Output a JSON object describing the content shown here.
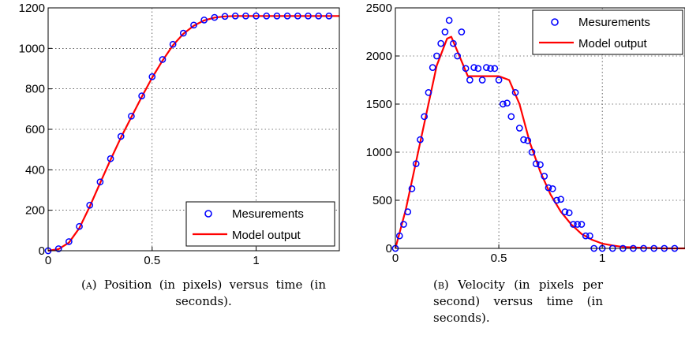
{
  "chart_data": [
    {
      "type": "scatter",
      "title": "",
      "xlabel": "",
      "ylabel": "",
      "xlim": [
        0,
        1.4
      ],
      "ylim": [
        0,
        1200
      ],
      "xticks": [
        "0",
        "0.5",
        "1"
      ],
      "yticks": [
        "0",
        "200",
        "400",
        "600",
        "800",
        "1000",
        "1200"
      ],
      "grid": true,
      "legend_position": "bottom-right",
      "series": [
        {
          "name": "Mesurements",
          "marker": "circle",
          "color": "#0000ff",
          "x": [
            0.0,
            0.05,
            0.1,
            0.15,
            0.2,
            0.25,
            0.3,
            0.35,
            0.4,
            0.45,
            0.5,
            0.55,
            0.6,
            0.65,
            0.7,
            0.75,
            0.8,
            0.85,
            0.9,
            0.95,
            1.0,
            1.05,
            1.1,
            1.15,
            1.2,
            1.25,
            1.3,
            1.35
          ],
          "y": [
            0,
            10,
            45,
            120,
            225,
            340,
            455,
            565,
            665,
            765,
            860,
            945,
            1020,
            1075,
            1115,
            1140,
            1153,
            1158,
            1160,
            1160,
            1160,
            1160,
            1160,
            1160,
            1160,
            1160,
            1160,
            1160
          ]
        },
        {
          "name": "Model output",
          "line": true,
          "color": "#ff0000",
          "x": [
            0.0,
            0.05,
            0.1,
            0.15,
            0.2,
            0.25,
            0.3,
            0.35,
            0.4,
            0.45,
            0.5,
            0.55,
            0.6,
            0.65,
            0.7,
            0.75,
            0.8,
            0.85,
            0.9,
            0.95,
            1.0,
            1.1,
            1.2,
            1.3,
            1.4
          ],
          "y": [
            0,
            8,
            40,
            112,
            218,
            335,
            450,
            560,
            660,
            760,
            855,
            940,
            1015,
            1072,
            1112,
            1138,
            1152,
            1158,
            1160,
            1160,
            1160,
            1160,
            1160,
            1160,
            1160
          ]
        }
      ]
    },
    {
      "type": "scatter",
      "title": "",
      "xlabel": "",
      "ylabel": "",
      "xlim": [
        0,
        1.4
      ],
      "ylim": [
        0,
        2500
      ],
      "xticks": [
        "0",
        "0.5",
        "1"
      ],
      "yticks": [
        "0",
        "500",
        "1000",
        "1500",
        "2000",
        "2500"
      ],
      "grid": true,
      "legend_position": "top-right",
      "series": [
        {
          "name": "Mesurements",
          "marker": "circle",
          "color": "#0000ff",
          "x": [
            0.0,
            0.02,
            0.04,
            0.06,
            0.08,
            0.1,
            0.12,
            0.14,
            0.16,
            0.18,
            0.2,
            0.22,
            0.24,
            0.26,
            0.28,
            0.3,
            0.32,
            0.34,
            0.36,
            0.38,
            0.4,
            0.42,
            0.44,
            0.46,
            0.48,
            0.5,
            0.52,
            0.54,
            0.56,
            0.58,
            0.6,
            0.62,
            0.64,
            0.66,
            0.68,
            0.7,
            0.72,
            0.74,
            0.76,
            0.78,
            0.8,
            0.82,
            0.84,
            0.86,
            0.88,
            0.9,
            0.92,
            0.94,
            0.96,
            1.0,
            1.05,
            1.1,
            1.15,
            1.2,
            1.25,
            1.3,
            1.35
          ],
          "y": [
            0,
            130,
            250,
            380,
            620,
            880,
            1130,
            1370,
            1620,
            1880,
            2000,
            2130,
            2250,
            2370,
            2130,
            2000,
            2250,
            1870,
            1750,
            1880,
            1870,
            1750,
            1880,
            1870,
            1870,
            1750,
            1500,
            1510,
            1370,
            1620,
            1250,
            1130,
            1120,
            1000,
            880,
            870,
            750,
            630,
            620,
            500,
            510,
            380,
            370,
            250,
            250,
            250,
            130,
            130,
            0,
            0,
            0,
            0,
            0,
            0,
            0,
            0,
            0
          ]
        },
        {
          "name": "Model output",
          "line": true,
          "color": "#ff0000",
          "x": [
            0.0,
            0.05,
            0.1,
            0.15,
            0.2,
            0.25,
            0.27,
            0.3,
            0.35,
            0.4,
            0.45,
            0.5,
            0.55,
            0.6,
            0.65,
            0.7,
            0.75,
            0.8,
            0.85,
            0.9,
            0.95,
            1.0,
            1.05,
            1.1,
            1.2,
            1.3,
            1.4
          ],
          "y": [
            0,
            400,
            900,
            1400,
            1900,
            2180,
            2200,
            2050,
            1790,
            1790,
            1790,
            1790,
            1750,
            1500,
            1100,
            800,
            560,
            380,
            250,
            150,
            90,
            50,
            30,
            15,
            5,
            0,
            0
          ]
        }
      ]
    }
  ],
  "captions": {
    "a_tag": "(a)",
    "a_text": "Position (in pixels) versus time (in seconds).",
    "b_tag": "(b)",
    "b_text": "Velocity (in pixels per second) versus time (in seconds)."
  },
  "colors": {
    "measurements": "#0000ff",
    "model": "#ff0000",
    "grid": "#000000"
  }
}
